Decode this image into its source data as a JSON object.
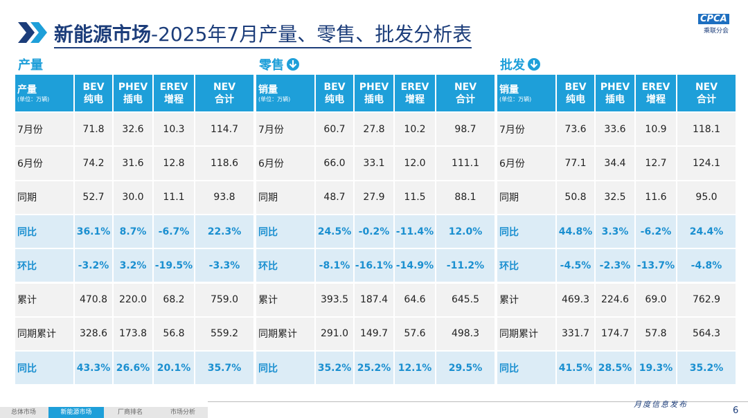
{
  "header": {
    "title_main": "新能源市场",
    "title_sub": "-2025年7月产量、零售、批发分析表",
    "logo_en": "CPCA",
    "logo_zh": "乘联分会"
  },
  "tables": [
    {
      "section": "产量",
      "arrow_icon": false,
      "corner": {
        "label": "产量",
        "unit": "(单位：万辆)"
      },
      "columns": [
        {
          "en": "BEV",
          "zh": "纯电"
        },
        {
          "en": "PHEV",
          "zh": "插电"
        },
        {
          "en": "EREV",
          "zh": "增程"
        },
        {
          "en": "NEV",
          "zh": "合计"
        }
      ],
      "rows": [
        {
          "label": "7月份",
          "emphasis": false,
          "cells": [
            "71.8",
            "32.6",
            "10.3",
            "114.7"
          ]
        },
        {
          "label": "6月份",
          "emphasis": false,
          "cells": [
            "74.2",
            "31.6",
            "12.8",
            "118.6"
          ]
        },
        {
          "label": "同期",
          "emphasis": false,
          "cells": [
            "52.7",
            "30.0",
            "11.1",
            "93.8"
          ]
        },
        {
          "label": "同比",
          "emphasis": true,
          "cells": [
            "36.1%",
            "8.7%",
            "-6.7%",
            "22.3%"
          ]
        },
        {
          "label": "环比",
          "emphasis": true,
          "cells": [
            "-3.2%",
            "3.2%",
            "-19.5%",
            "-3.3%"
          ]
        },
        {
          "label": "累计",
          "emphasis": false,
          "cells": [
            "470.8",
            "220.0",
            "68.2",
            "759.0"
          ]
        },
        {
          "label": "同期累计",
          "emphasis": false,
          "cells": [
            "328.6",
            "173.8",
            "56.8",
            "559.2"
          ]
        },
        {
          "label": "同比",
          "emphasis": true,
          "cells": [
            "43.3%",
            "26.6%",
            "20.1%",
            "35.7%"
          ]
        }
      ]
    },
    {
      "section": "零售",
      "arrow_icon": true,
      "corner": {
        "label": "销量",
        "unit": "(单位：万辆)"
      },
      "columns": [
        {
          "en": "BEV",
          "zh": "纯电"
        },
        {
          "en": "PHEV",
          "zh": "插电"
        },
        {
          "en": "EREV",
          "zh": "增程"
        },
        {
          "en": "NEV",
          "zh": "合计"
        }
      ],
      "rows": [
        {
          "label": "7月份",
          "emphasis": false,
          "cells": [
            "60.7",
            "27.8",
            "10.2",
            "98.7"
          ]
        },
        {
          "label": "6月份",
          "emphasis": false,
          "cells": [
            "66.0",
            "33.1",
            "12.0",
            "111.1"
          ]
        },
        {
          "label": "同期",
          "emphasis": false,
          "cells": [
            "48.7",
            "27.9",
            "11.5",
            "88.1"
          ]
        },
        {
          "label": "同比",
          "emphasis": true,
          "cells": [
            "24.5%",
            "-0.2%",
            "-11.4%",
            "12.0%"
          ]
        },
        {
          "label": "环比",
          "emphasis": true,
          "cells": [
            "-8.1%",
            "-16.1%",
            "-14.9%",
            "-11.2%"
          ]
        },
        {
          "label": "累计",
          "emphasis": false,
          "cells": [
            "393.5",
            "187.4",
            "64.6",
            "645.5"
          ]
        },
        {
          "label": "同期累计",
          "emphasis": false,
          "cells": [
            "291.0",
            "149.7",
            "57.6",
            "498.3"
          ]
        },
        {
          "label": "同比",
          "emphasis": true,
          "cells": [
            "35.2%",
            "25.2%",
            "12.1%",
            "29.5%"
          ]
        }
      ]
    },
    {
      "section": "批发",
      "arrow_icon": true,
      "corner": {
        "label": "销量",
        "unit": "(单位：万辆)"
      },
      "columns": [
        {
          "en": "BEV",
          "zh": "纯电"
        },
        {
          "en": "PHEV",
          "zh": "插电"
        },
        {
          "en": "EREV",
          "zh": "增程"
        },
        {
          "en": "NEV",
          "zh": "合计"
        }
      ],
      "rows": [
        {
          "label": "7月份",
          "emphasis": false,
          "cells": [
            "73.6",
            "33.6",
            "10.9",
            "118.1"
          ]
        },
        {
          "label": "6月份",
          "emphasis": false,
          "cells": [
            "77.1",
            "34.4",
            "12.7",
            "124.1"
          ]
        },
        {
          "label": "同期",
          "emphasis": false,
          "cells": [
            "50.8",
            "32.5",
            "11.6",
            "95.0"
          ]
        },
        {
          "label": "同比",
          "emphasis": true,
          "cells": [
            "44.8%",
            "3.3%",
            "-6.2%",
            "24.4%"
          ]
        },
        {
          "label": "环比",
          "emphasis": true,
          "cells": [
            "-4.5%",
            "-2.3%",
            "-13.7%",
            "-4.8%"
          ]
        },
        {
          "label": "累计",
          "emphasis": false,
          "cells": [
            "469.3",
            "224.6",
            "69.0",
            "762.9"
          ]
        },
        {
          "label": "同期累计",
          "emphasis": false,
          "cells": [
            "331.7",
            "174.7",
            "57.8",
            "564.3"
          ]
        },
        {
          "label": "同比",
          "emphasis": true,
          "cells": [
            "41.5%",
            "28.5%",
            "19.3%",
            "35.2%"
          ]
        }
      ]
    }
  ],
  "footer": {
    "tabs": [
      "总体市场",
      "新能源市场",
      "厂商排名",
      "市场分析"
    ],
    "active_tab": 1,
    "note": "月度信息发布",
    "page": "6"
  }
}
